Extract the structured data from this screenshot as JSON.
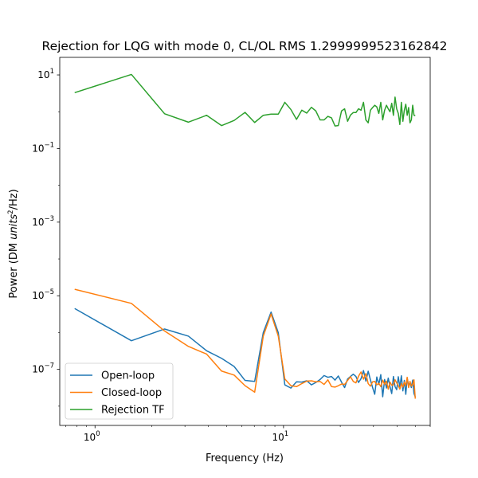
{
  "chart_data": {
    "type": "line",
    "title": "Rejection for LQG with mode 0, CL/OL RMS 1.2999999523162842",
    "xlabel": "Frequency (Hz)",
    "ylabel_prefix": "Power (DM ",
    "ylabel_units": "units",
    "ylabel_exp": "2",
    "ylabel_suffix": "/Hz)",
    "x_scale": "log",
    "y_scale": "log",
    "xlim": [
      0.65,
      60
    ],
    "ylim": [
      3e-09,
      30
    ],
    "x_ticks": [
      {
        "value": 1,
        "base": "10",
        "exp": "0"
      },
      {
        "value": 10,
        "base": "10",
        "exp": "1"
      }
    ],
    "y_ticks": [
      {
        "value": 1e-07,
        "base": "10",
        "exp": "−7"
      },
      {
        "value": 1e-05,
        "base": "10",
        "exp": "−5"
      },
      {
        "value": 0.001,
        "base": "10",
        "exp": "−3"
      },
      {
        "value": 0.1,
        "base": "10",
        "exp": "−1"
      },
      {
        "value": 10,
        "base": "10",
        "exp": "1"
      }
    ],
    "legend_position": "lower-left",
    "grid": false,
    "series": [
      {
        "name": "Open-loop",
        "color": "#1f77b4",
        "points": [
          [
            0.78,
            4.5e-06
          ],
          [
            1.56,
            6e-07
          ],
          [
            2.34,
            1.25e-06
          ],
          [
            3.13,
            8e-07
          ],
          [
            3.91,
            3.2e-07
          ],
          [
            4.69,
            2e-07
          ],
          [
            5.47,
            1.2e-07
          ],
          [
            6.25,
            5e-08
          ],
          [
            7.03,
            4.7e-08
          ],
          [
            7.81,
            1e-06
          ],
          [
            8.59,
            3.6e-06
          ],
          [
            9.38,
            1e-06
          ],
          [
            10.16,
            3.8e-08
          ],
          [
            10.94,
            3.1e-08
          ],
          [
            11.72,
            4.6e-08
          ],
          [
            12.5,
            4.5e-08
          ],
          [
            13.28,
            4.9e-08
          ],
          [
            14.06,
            3.8e-08
          ],
          [
            14.84,
            4.4e-08
          ],
          [
            15.63,
            5.3e-08
          ],
          [
            16.41,
            6.8e-08
          ],
          [
            17.19,
            6.1e-08
          ],
          [
            17.97,
            6.4e-08
          ],
          [
            18.75,
            5.1e-08
          ],
          [
            19.53,
            6.6e-08
          ],
          [
            20.31,
            4.5e-08
          ],
          [
            21.09,
            3.2e-08
          ],
          [
            21.88,
            5.5e-08
          ],
          [
            22.66,
            6.4e-08
          ],
          [
            23.44,
            7.4e-08
          ],
          [
            24.22,
            6.4e-08
          ],
          [
            25,
            4.4e-08
          ],
          [
            25.78,
            5.6e-08
          ],
          [
            26.56,
            9.3e-08
          ],
          [
            27.34,
            4.8e-08
          ],
          [
            28.13,
            8.9e-08
          ],
          [
            28.91,
            5.2e-08
          ],
          [
            29.69,
            3.2e-08
          ],
          [
            30.47,
            2.1e-08
          ],
          [
            31.25,
            6.2e-08
          ],
          [
            32.03,
            3.9e-08
          ],
          [
            32.81,
            7.2e-08
          ],
          [
            33.59,
            1.8e-08
          ],
          [
            34.38,
            5.3e-08
          ],
          [
            35.16,
            3.1e-08
          ],
          [
            35.94,
            5.8e-08
          ],
          [
            36.72,
            3.4e-08
          ],
          [
            37.5,
            2.2e-08
          ],
          [
            38.28,
            6.4e-08
          ],
          [
            39.06,
            3.4e-08
          ],
          [
            39.84,
            2.8e-08
          ],
          [
            40.63,
            6.3e-08
          ],
          [
            41.41,
            3.3e-08
          ],
          [
            42.19,
            6.7e-08
          ],
          [
            42.97,
            2.6e-08
          ],
          [
            43.75,
            5e-08
          ],
          [
            44.53,
            2.1e-08
          ],
          [
            45.31,
            5.8e-08
          ],
          [
            46.09,
            3.7e-08
          ],
          [
            46.88,
            4.4e-08
          ],
          [
            47.66,
            3.2e-08
          ],
          [
            48.44,
            5.1e-08
          ],
          [
            49.22,
            2.2e-08
          ],
          [
            50,
            1.8e-08
          ]
        ]
      },
      {
        "name": "Closed-loop",
        "color": "#ff7f0e",
        "points": [
          [
            0.78,
            1.5e-05
          ],
          [
            1.56,
            6.2e-06
          ],
          [
            2.34,
            1.1e-06
          ],
          [
            3.13,
            4.2e-07
          ],
          [
            3.91,
            2.6e-07
          ],
          [
            4.69,
            9e-08
          ],
          [
            5.47,
            7e-08
          ],
          [
            6.25,
            3.6e-08
          ],
          [
            7.03,
            2.4e-08
          ],
          [
            7.81,
            8e-07
          ],
          [
            8.59,
            3.2e-06
          ],
          [
            9.38,
            8e-07
          ],
          [
            10.16,
            5.5e-08
          ],
          [
            10.94,
            3.6e-08
          ],
          [
            11.72,
            3.4e-08
          ],
          [
            12.5,
            4.1e-08
          ],
          [
            13.28,
            4.8e-08
          ],
          [
            14.06,
            4.9e-08
          ],
          [
            14.84,
            4.6e-08
          ],
          [
            15.63,
            4.7e-08
          ],
          [
            16.41,
            3.9e-08
          ],
          [
            17.19,
            5.2e-08
          ],
          [
            17.97,
            3.4e-08
          ],
          [
            18.75,
            3.3e-08
          ],
          [
            19.53,
            3.6e-08
          ],
          [
            20.31,
            4e-08
          ],
          [
            21.09,
            3.9e-08
          ],
          [
            21.88,
            5e-08
          ],
          [
            22.66,
            6.3e-08
          ],
          [
            23.44,
            4.7e-08
          ],
          [
            24.22,
            4.3e-08
          ],
          [
            25,
            6.5e-08
          ],
          [
            25.78,
            8.5e-08
          ],
          [
            26.56,
            5.4e-08
          ],
          [
            27.34,
            7.7e-08
          ],
          [
            28.13,
            4.1e-08
          ],
          [
            28.91,
            3.5e-08
          ],
          [
            29.69,
            4.6e-08
          ],
          [
            30.47,
            4.7e-08
          ],
          [
            31.25,
            3.8e-08
          ],
          [
            32.03,
            4.2e-08
          ],
          [
            32.81,
            3.4e-08
          ],
          [
            33.59,
            5.1e-08
          ],
          [
            34.38,
            3.9e-08
          ],
          [
            35.16,
            4.8e-08
          ],
          [
            35.94,
            2.9e-08
          ],
          [
            36.72,
            4.5e-08
          ],
          [
            37.5,
            3.7e-08
          ],
          [
            38.28,
            3.8e-08
          ],
          [
            39.06,
            5.2e-08
          ],
          [
            39.84,
            4.3e-08
          ],
          [
            40.63,
            3.6e-08
          ],
          [
            41.41,
            2.9e-08
          ],
          [
            42.19,
            4.1e-08
          ],
          [
            42.97,
            3.3e-08
          ],
          [
            43.75,
            4.5e-08
          ],
          [
            44.53,
            3.6e-08
          ],
          [
            45.31,
            6.1e-08
          ],
          [
            46.09,
            3.2e-08
          ],
          [
            46.88,
            4.7e-08
          ],
          [
            47.66,
            3.5e-08
          ],
          [
            48.44,
            3.9e-08
          ],
          [
            49.22,
            5.2e-08
          ],
          [
            50,
            1.6e-08
          ]
        ]
      },
      {
        "name": "Rejection TF",
        "color": "#2ca02c",
        "points": [
          [
            0.78,
            3.3
          ],
          [
            1.56,
            10.3
          ],
          [
            2.34,
            0.88
          ],
          [
            3.13,
            0.52
          ],
          [
            3.91,
            0.8
          ],
          [
            4.69,
            0.42
          ],
          [
            5.47,
            0.58
          ],
          [
            6.25,
            0.96
          ],
          [
            7.03,
            0.51
          ],
          [
            7.81,
            0.8
          ],
          [
            8.59,
            0.86
          ],
          [
            9.38,
            0.86
          ],
          [
            10.16,
            1.8
          ],
          [
            10.94,
            1.15
          ],
          [
            11.72,
            0.62
          ],
          [
            12.5,
            1.1
          ],
          [
            13.28,
            0.92
          ],
          [
            14.06,
            1.32
          ],
          [
            14.84,
            1.05
          ],
          [
            15.63,
            0.6
          ],
          [
            16.41,
            0.6
          ],
          [
            17.19,
            0.75
          ],
          [
            17.97,
            0.68
          ],
          [
            18.75,
            0.41
          ],
          [
            19.53,
            0.42
          ],
          [
            20.31,
            1.05
          ],
          [
            21.09,
            1.2
          ],
          [
            21.88,
            0.55
          ],
          [
            22.66,
            0.81
          ],
          [
            23.44,
            0.95
          ],
          [
            24.22,
            0.95
          ],
          [
            25,
            1.2
          ],
          [
            25.78,
            1.1
          ],
          [
            26.56,
            1.8
          ],
          [
            27.34,
            0.6
          ],
          [
            28.13,
            0.5
          ],
          [
            28.91,
            1.1
          ],
          [
            29.69,
            1.3
          ],
          [
            30.47,
            1.5
          ],
          [
            31.25,
            1.35
          ],
          [
            32.03,
            0.9
          ],
          [
            32.81,
            1.8
          ],
          [
            33.59,
            0.6
          ],
          [
            34.38,
            1.1
          ],
          [
            35.16,
            1.5
          ],
          [
            35.94,
            1.2
          ],
          [
            36.72,
            1.0
          ],
          [
            37.5,
            1.7
          ],
          [
            38.28,
            0.8
          ],
          [
            39.06,
            2.5
          ],
          [
            39.84,
            1.2
          ],
          [
            40.63,
            0.9
          ],
          [
            41.41,
            0.45
          ],
          [
            42.19,
            1.8
          ],
          [
            42.97,
            0.55
          ],
          [
            43.75,
            1.1
          ],
          [
            44.53,
            1.6
          ],
          [
            45.31,
            0.8
          ],
          [
            46.09,
            1.3
          ],
          [
            46.88,
            0.5
          ],
          [
            47.66,
            0.6
          ],
          [
            48.44,
            1.5
          ],
          [
            49.22,
            0.8
          ],
          [
            50,
            0.78
          ]
        ]
      }
    ]
  }
}
